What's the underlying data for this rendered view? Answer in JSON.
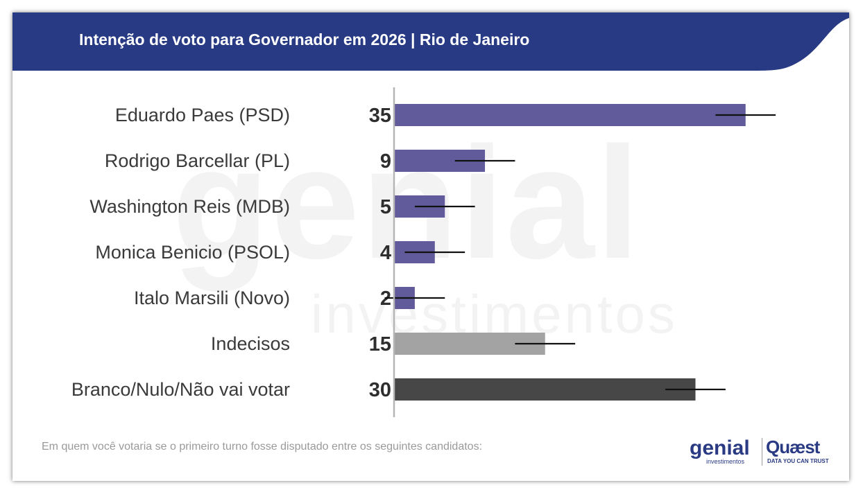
{
  "header": {
    "title": "Intenção de voto para Governador em 2026 | Rio de Janeiro"
  },
  "colors": {
    "header_bg": "#283a84",
    "candidate_bar": "#625b9b",
    "undecided_bar": "#a3a3a3",
    "blank_bar": "#474747",
    "error_bar": "#111111",
    "axis": "#b5b5b5"
  },
  "watermark": {
    "big": "genial",
    "small": "investimentos"
  },
  "chart_data": {
    "type": "bar",
    "orientation": "horizontal",
    "title": "Intenção de voto para Governador em 2026 | Rio de Janeiro",
    "categories": [
      "Eduardo Paes (PSD)",
      "Rodrigo Barcellar (PL)",
      "Washington Reis (MDB)",
      "Monica Benicio (PSOL)",
      "Italo Marsili (Novo)",
      "Indecisos",
      "Branco/Nulo/Não vai votar"
    ],
    "values": [
      35,
      9,
      5,
      4,
      2,
      15,
      30
    ],
    "value_labels": [
      "35",
      "9",
      "5",
      "4",
      "2",
      "15",
      "30"
    ],
    "bar_colors": [
      "#625b9b",
      "#625b9b",
      "#625b9b",
      "#625b9b",
      "#625b9b",
      "#a3a3a3",
      "#474747"
    ],
    "error_margin": 3,
    "xlim": [
      0,
      40
    ],
    "grid": false,
    "legend": "none"
  },
  "footer": {
    "note": "Em quem você votaria se o primeiro turno fosse disputado entre os seguintes candidatos:",
    "logo_genial": "genial",
    "logo_genial_sub": "investimentos",
    "logo_quaest": "Quæst",
    "logo_quaest_sub": "DATA YOU CAN TRUST"
  }
}
